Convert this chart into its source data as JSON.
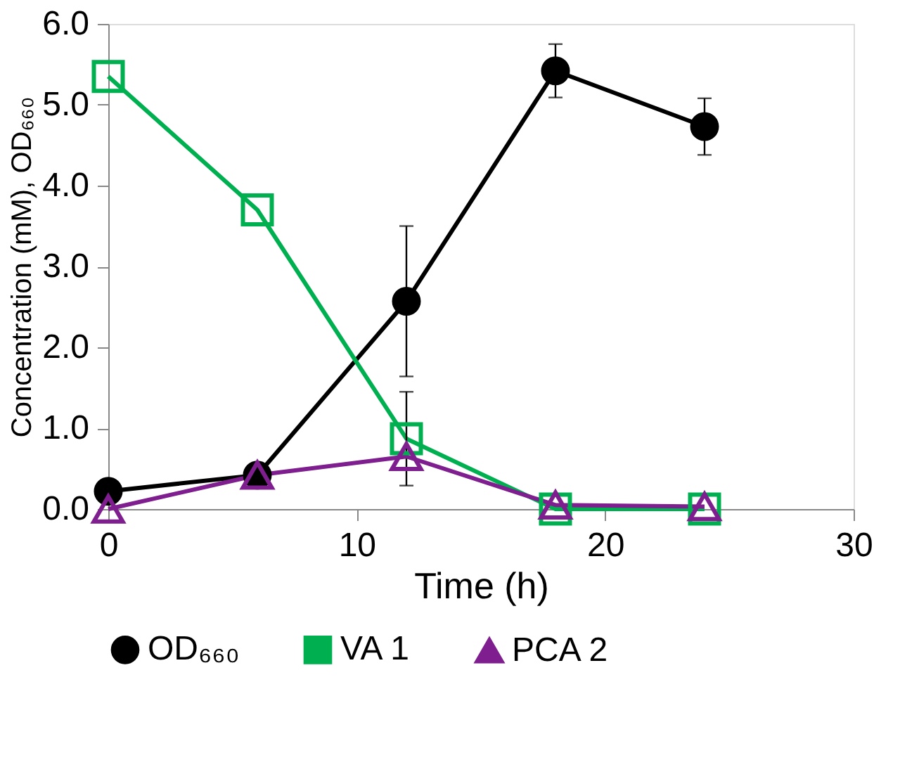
{
  "chart_data": {
    "type": "line",
    "xlabel": "Time (h)",
    "ylabel": "Concentration (mM), OD₆₆₀",
    "x": [
      0,
      6,
      12,
      18,
      24
    ],
    "series": [
      {
        "name": "OD₆₆₀",
        "color": "#000000",
        "marker": "circle",
        "values": [
          0.22,
          0.42,
          2.57,
          5.42,
          4.73
        ],
        "errors": [
          null,
          null,
          0.93,
          0.33,
          0.35
        ]
      },
      {
        "name": "VA 1",
        "color": "#00b050",
        "marker": "square",
        "values": [
          5.35,
          3.7,
          0.87,
          0.0,
          0.0
        ],
        "errors": [
          null,
          null,
          0.58,
          null,
          null
        ]
      },
      {
        "name": "PCA 2",
        "color": "#7f1f8f",
        "marker": "triangle",
        "values": [
          0.0,
          0.42,
          0.65,
          0.05,
          0.03
        ]
      }
    ],
    "xlim": [
      0,
      30
    ],
    "xticks": [
      0,
      10,
      20,
      30
    ],
    "ylim": [
      0,
      6
    ],
    "yticks": [
      {
        "value": 0,
        "label": "0.0"
      },
      {
        "value": 1,
        "label": "1.0"
      },
      {
        "value": 2,
        "label": "2.0"
      },
      {
        "value": 3,
        "label": "3.0"
      },
      {
        "value": 4,
        "label": "4.0"
      },
      {
        "value": 5,
        "label": "5.0"
      },
      {
        "value": 6,
        "label": "6.0"
      }
    ],
    "grid": false,
    "legend": "bottom"
  }
}
